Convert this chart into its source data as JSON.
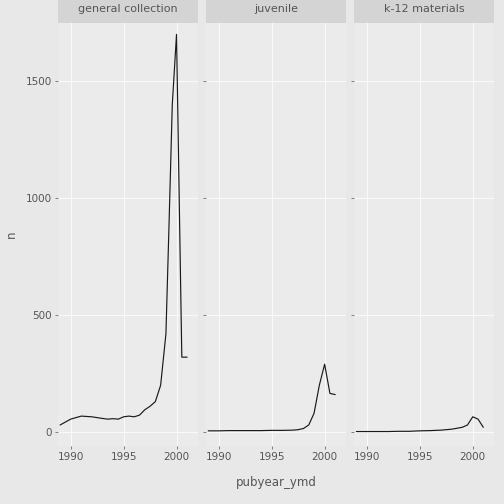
{
  "title_fontsize": 8,
  "axis_label_fontsize": 8.5,
  "tick_fontsize": 7.5,
  "xlabel": "pubyear_ymd",
  "ylabel": "n",
  "figure_bg": "#E8E8E8",
  "panel_bg": "#EBEBEB",
  "strip_bg": "#D4D4D4",
  "grid_color": "#FAFAFA",
  "line_color": "#1A1A1A",
  "text_color": "#555555",
  "facets": [
    {
      "title": "general collection",
      "data": {
        "x": [
          1989,
          1990,
          1991,
          1992,
          1993,
          1993.5,
          1994,
          1994.5,
          1995,
          1995.5,
          1996,
          1996.5,
          1997,
          1997.5,
          1998,
          1998.5,
          1999,
          1999.3,
          1999.6,
          2000,
          2000.5,
          2001
        ],
        "y": [
          30,
          55,
          68,
          65,
          58,
          55,
          57,
          55,
          65,
          68,
          65,
          72,
          95,
          110,
          130,
          200,
          420,
          900,
          1400,
          1700,
          320,
          320
        ]
      }
    },
    {
      "title": "juvenile",
      "data": {
        "x": [
          1989,
          1990,
          1991,
          1992,
          1993,
          1994,
          1995,
          1996,
          1997,
          1997.5,
          1998,
          1998.5,
          1999,
          1999.5,
          2000,
          2000.5,
          2001
        ],
        "y": [
          5,
          5,
          6,
          6,
          6,
          6,
          7,
          7,
          8,
          10,
          15,
          30,
          80,
          200,
          290,
          165,
          160
        ]
      }
    },
    {
      "title": "k-12 materials",
      "data": {
        "x": [
          1989,
          1990,
          1991,
          1992,
          1993,
          1994,
          1995,
          1996,
          1997,
          1998,
          1999,
          1999.5,
          2000,
          2000.5,
          2001
        ],
        "y": [
          2,
          2,
          2,
          2,
          3,
          3,
          5,
          6,
          8,
          12,
          20,
          30,
          65,
          55,
          20
        ]
      }
    }
  ],
  "xlim": [
    1988.8,
    2002.0
  ],
  "ylim": [
    -60,
    1750
  ],
  "yticks": [
    0,
    500,
    1000,
    1500
  ],
  "xticks": [
    1990,
    1995,
    2000
  ]
}
